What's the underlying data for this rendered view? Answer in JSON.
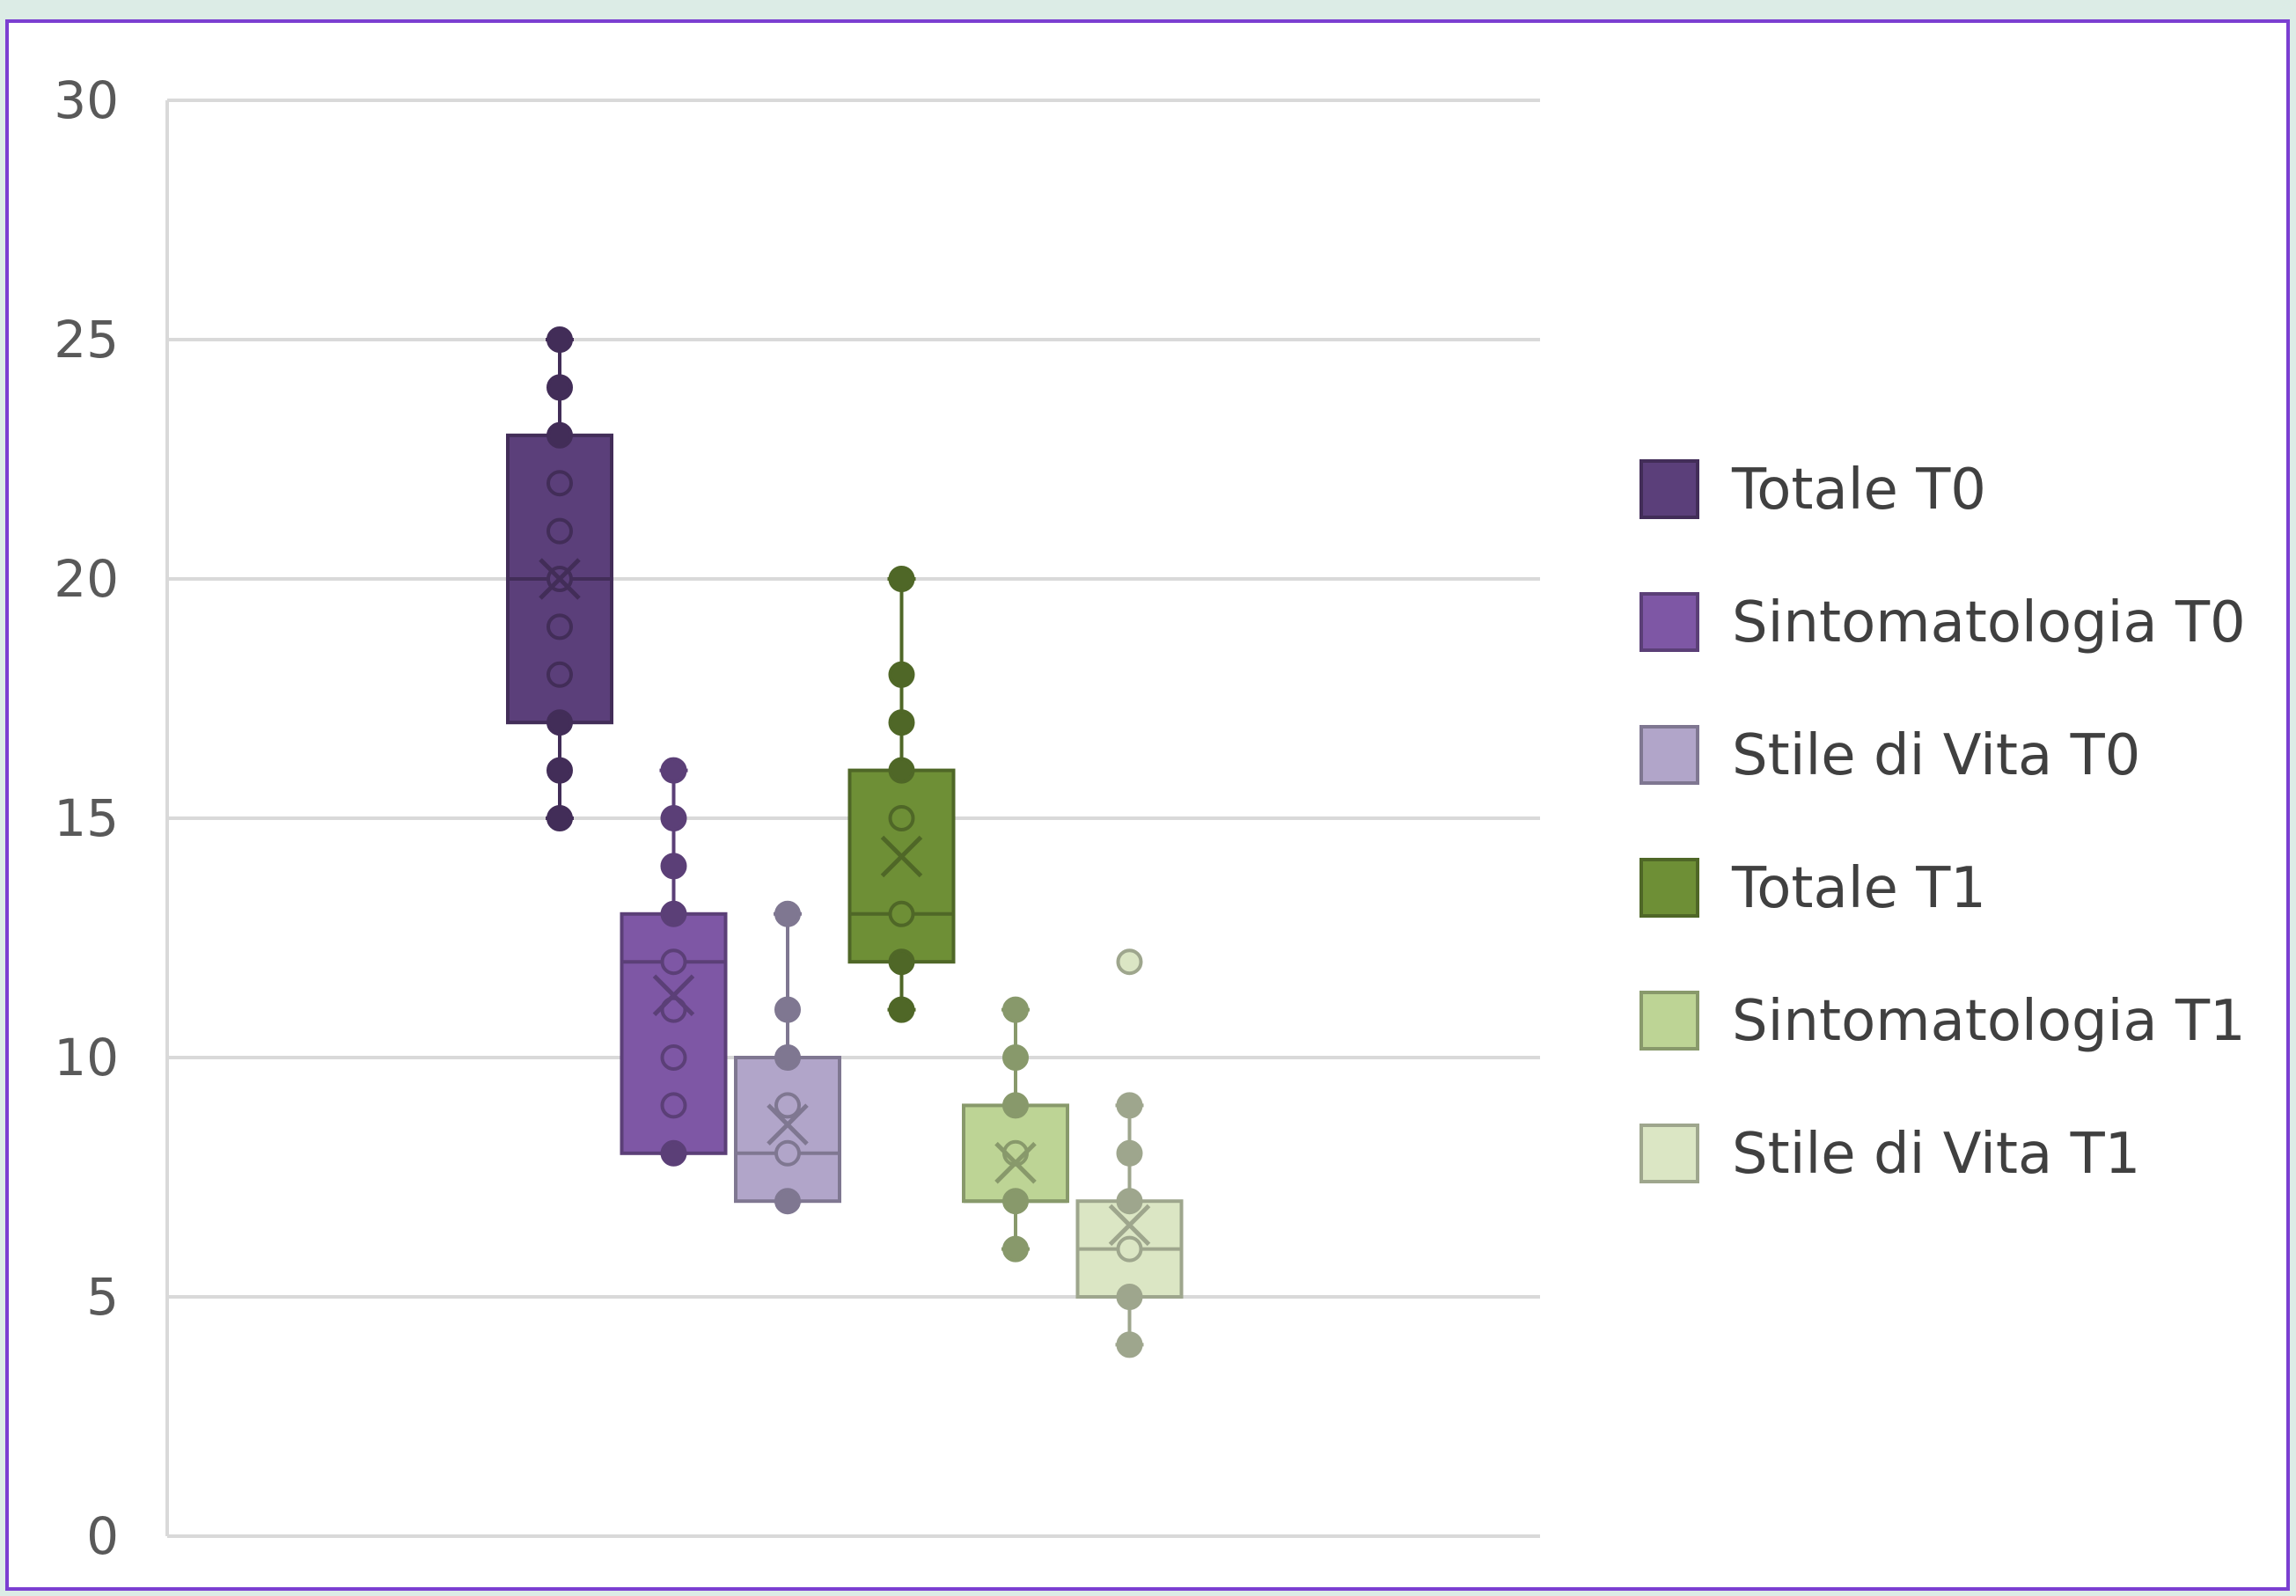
{
  "chart_data": {
    "type": "boxplot",
    "title": "",
    "xlabel": "",
    "ylabel": "",
    "ylim": [
      0,
      30
    ],
    "yticks": [
      0,
      5,
      10,
      15,
      20,
      25,
      30
    ],
    "grid": true,
    "legend_position": "right",
    "series": [
      {
        "name": "Totale T0",
        "color": "#5b3f7a",
        "min": 15,
        "q1": 17,
        "median": 20,
        "q3": 23,
        "max": 25,
        "mean": 20,
        "points": [
          15,
          16,
          17,
          18,
          19,
          20,
          21,
          22,
          23,
          24,
          25
        ]
      },
      {
        "name": "Sintomatologia T0",
        "color": "#7e57a5",
        "min": 8,
        "q1": 8,
        "median": 12,
        "q3": 13,
        "max": 16,
        "mean": 11.3,
        "points": [
          8,
          9,
          10,
          11,
          12,
          13,
          14,
          15,
          16
        ]
      },
      {
        "name": "Stile di Vita T0",
        "color": "#b1a5c9",
        "min": 7,
        "q1": 7,
        "median": 8,
        "q3": 10,
        "max": 13,
        "mean": 8.6,
        "points": [
          7,
          8,
          9,
          10,
          11,
          13
        ]
      },
      {
        "name": "Totale T1",
        "color": "#6e8f36",
        "min": 11,
        "q1": 12,
        "median": 13,
        "q3": 16,
        "max": 20,
        "mean": 14.2,
        "points": [
          11,
          12,
          13,
          15,
          16,
          17,
          18,
          20
        ]
      },
      {
        "name": "Sintomatologia T1",
        "color": "#bdd495",
        "min": 6,
        "q1": 7,
        "median": 7,
        "q3": 9,
        "max": 11,
        "mean": 7.8,
        "points": [
          6,
          7,
          8,
          9,
          10,
          11
        ]
      },
      {
        "name": "Stile di Vita T1",
        "color": "#dbe6c4",
        "min": 4,
        "q1": 5,
        "median": 6,
        "q3": 7,
        "max": 9,
        "mean": 6.5,
        "outliers": [
          12
        ],
        "points": [
          4,
          5,
          6,
          7,
          8,
          9
        ]
      }
    ]
  }
}
